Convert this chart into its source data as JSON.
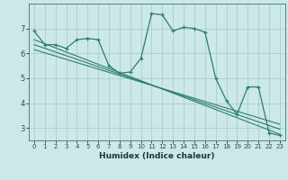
{
  "title": "",
  "xlabel": "Humidex (Indice chaleur)",
  "ylabel": "",
  "bg_color": "#cce8e8",
  "grid_color": "#aacece",
  "line_color": "#2e7d6e",
  "x_values": [
    0,
    1,
    2,
    3,
    4,
    5,
    6,
    7,
    8,
    9,
    10,
    11,
    12,
    13,
    14,
    15,
    16,
    17,
    18,
    19,
    20,
    21,
    22,
    23
  ],
  "y_main": [
    6.9,
    6.35,
    6.35,
    6.2,
    6.55,
    6.6,
    6.55,
    5.5,
    5.2,
    5.25,
    5.8,
    7.6,
    7.55,
    6.9,
    7.05,
    7.0,
    6.85,
    5.0,
    4.1,
    3.55,
    4.65,
    4.65,
    2.8,
    2.7
  ],
  "ylim": [
    2.5,
    8.0
  ],
  "yticks": [
    3,
    4,
    5,
    6,
    7
  ],
  "xticks": [
    0,
    1,
    2,
    3,
    4,
    5,
    6,
    7,
    8,
    9,
    10,
    11,
    12,
    13,
    14,
    15,
    16,
    17,
    18,
    19,
    20,
    21,
    22,
    23
  ],
  "trend_lines": [
    {
      "x0": 0,
      "y0": 6.55,
      "x1": 23,
      "y1": 2.75
    },
    {
      "x0": 0,
      "y0": 6.35,
      "x1": 23,
      "y1": 2.95
    },
    {
      "x0": 0,
      "y0": 6.15,
      "x1": 23,
      "y1": 3.15
    }
  ]
}
